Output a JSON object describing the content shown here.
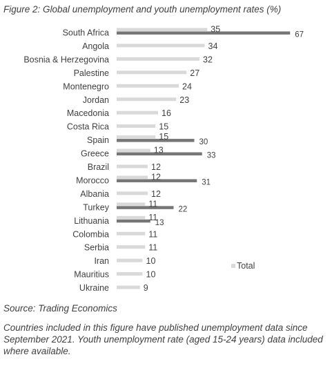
{
  "figure_title": "Figure 2:  Global unemployment and youth unemployment rates (%)",
  "source": "Source: Trading Economics",
  "note": "Countries included in this figure have published unemployment data since September 2021. Youth unemployment rate (aged 15-24 years) data included where available.",
  "colors": {
    "total": "#d9d9d9",
    "youth": "#767676",
    "text": "#404040"
  },
  "chart_data": {
    "type": "bar",
    "orientation": "horizontal",
    "title": "",
    "xlabel": "",
    "ylabel": "",
    "xlim": [
      0,
      75
    ],
    "grid": false,
    "legend_position": "lower-right",
    "categories": [
      "South Africa",
      "Angola",
      "Bosnia & Herzegovina",
      "Palestine",
      "Montenegro",
      "Jordan",
      "Macedonia",
      "Costa Rica",
      "Spain",
      "Greece",
      "Brazil",
      "Morocco",
      "Albania",
      "Turkey",
      "Lithuania",
      "Colombia",
      "Serbia",
      "Iran",
      "Mauritius",
      "Ukraine"
    ],
    "series": [
      {
        "name": "Total",
        "values": [
          35,
          34,
          32,
          27,
          24,
          23,
          16,
          15,
          15,
          13,
          12,
          12,
          12,
          11,
          11,
          11,
          11,
          10,
          10,
          9
        ]
      },
      {
        "values": [
          67,
          null,
          null,
          null,
          null,
          null,
          null,
          null,
          30,
          33,
          null,
          31,
          null,
          22,
          13,
          null,
          null,
          null,
          null,
          null
        ]
      }
    ]
  }
}
